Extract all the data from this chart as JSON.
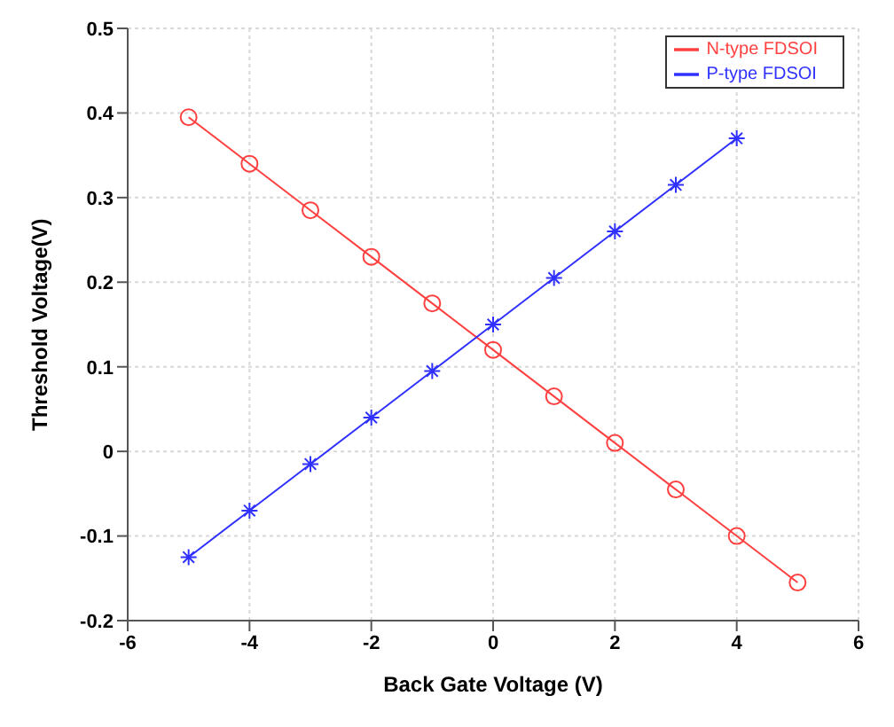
{
  "chart_data": {
    "type": "line",
    "xlabel": "Back Gate Voltage (V)",
    "ylabel": "Threshold Voltage(V)",
    "x": [
      -5,
      -4,
      -3,
      -2,
      -1,
      0,
      1,
      2,
      3,
      4,
      5
    ],
    "series": [
      {
        "name": "N-type FDSOI",
        "color": "#ff4040",
        "marker": "circle",
        "values": [
          0.395,
          0.34,
          0.285,
          0.23,
          0.175,
          0.12,
          0.065,
          0.01,
          -0.045,
          -0.1,
          -0.155
        ]
      },
      {
        "name": "P-type FDSOI",
        "color": "#3030ff",
        "marker": "cross",
        "values": [
          -0.125,
          -0.07,
          -0.015,
          0.04,
          0.095,
          0.15,
          0.205,
          0.26,
          0.315,
          0.37,
          null
        ]
      }
    ],
    "xlim": [
      -6,
      6
    ],
    "xticks": [
      -6,
      -4,
      -2,
      0,
      2,
      4,
      6
    ],
    "ylim": [
      -0.2,
      0.5
    ],
    "yticks": [
      -0.2,
      -0.1,
      0,
      0.1,
      0.2,
      0.3,
      0.4,
      0.5
    ],
    "grid": true,
    "legend": "top right",
    "line_style": "solid"
  }
}
